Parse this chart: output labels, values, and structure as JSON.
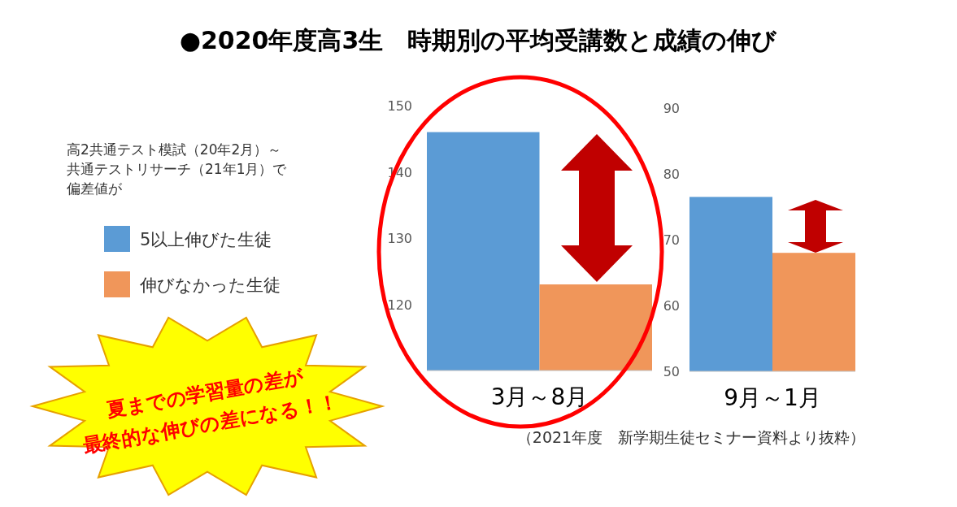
{
  "chart_data": [
    {
      "type": "bar",
      "title": "●2020年度高3生　時期別の平均受講数と成績の伸び",
      "legend_title": "高2共通テスト模試（20年2月）～共通テストリサーチ（21年1月）で偏差値が",
      "categories": [
        "3月～8月"
      ],
      "series": [
        {
          "name": "5以上伸びた生徒",
          "color": "#5b9bd5",
          "values": [
            146
          ]
        },
        {
          "name": "伸びなかった生徒",
          "color": "#f0965a",
          "values": [
            123
          ]
        }
      ],
      "ylim": [
        110,
        150
      ],
      "yticks": [
        120,
        130,
        140,
        150
      ],
      "legend": "left",
      "annotations": [
        "夏までの学習量の差が",
        "最終的な伸びの差になる！！"
      ]
    },
    {
      "type": "bar",
      "categories": [
        "9月～1月"
      ],
      "series": [
        {
          "color": "#5b9bd5",
          "values": [
            76.5
          ]
        },
        {
          "color": "#f0965a",
          "values": [
            68
          ]
        }
      ],
      "ylim": [
        50,
        90
      ],
      "yticks": [
        50,
        60,
        70,
        80,
        90
      ],
      "annotations": [
        "（2021年度　新学期生徒セミナー資料より抜粋）"
      ]
    }
  ]
}
